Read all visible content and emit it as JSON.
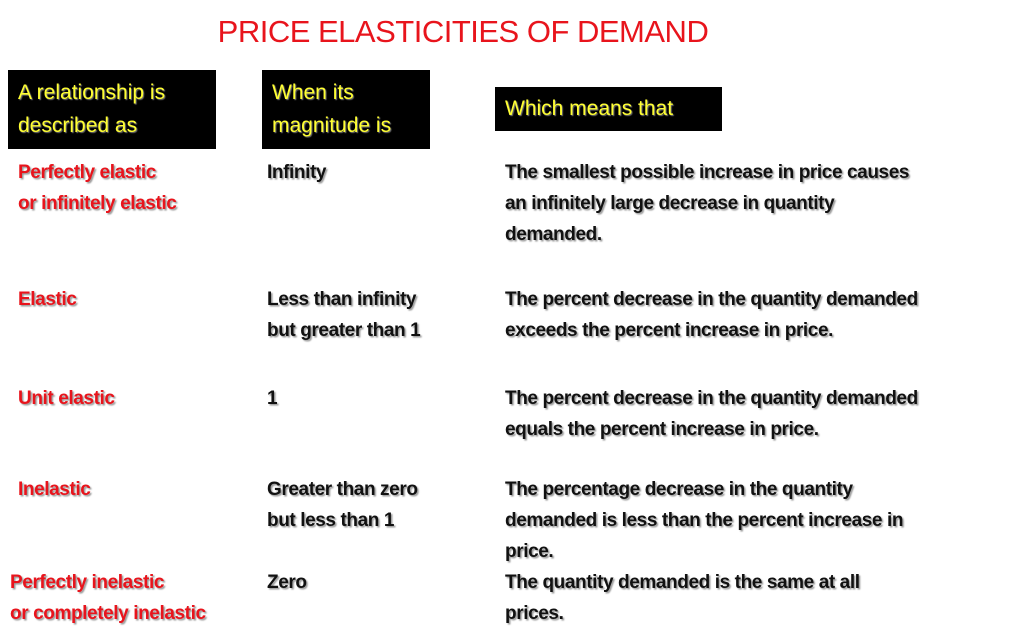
{
  "title": "PRICE ELASTICITIES OF DEMAND",
  "headers": [
    [
      "A relationship is",
      "described as"
    ],
    [
      "When its",
      "magnitude is"
    ],
    [
      "Which means that"
    ]
  ],
  "rows": [
    {
      "described": [
        "Perfectly elastic",
        "or infinitely elastic"
      ],
      "magnitude": [
        "Infinity"
      ],
      "meaning": [
        "The smallest possible increase in price causes",
        "an infinitely large decrease in quantity",
        "demanded."
      ]
    },
    {
      "described": [
        "Elastic"
      ],
      "magnitude": [
        "Less than infinity",
        "but greater than 1"
      ],
      "meaning": [
        "The percent decrease in the quantity demanded",
        "exceeds the percent increase in price."
      ]
    },
    {
      "described": [
        "Unit elastic"
      ],
      "magnitude": [
        "1"
      ],
      "meaning": [
        "The percent decrease in the quantity demanded",
        "equals the percent increase in price."
      ]
    },
    {
      "described": [
        "Inelastic"
      ],
      "magnitude": [
        "Greater than zero",
        "but less than 1"
      ],
      "meaning": [
        "The percentage decrease in the quantity",
        "demanded is less than the percent increase in",
        "price."
      ]
    },
    {
      "described": [
        "Perfectly inelastic",
        "or completely inelastic"
      ],
      "magnitude": [
        "Zero"
      ],
      "meaning": [
        "The quantity demanded is the same at all",
        "prices."
      ]
    }
  ],
  "colors": {
    "title": "#e8141c",
    "header_bg": "#000000",
    "header_text": "#ffff33",
    "described_text": "#e8141c",
    "body_text": "#111111"
  }
}
